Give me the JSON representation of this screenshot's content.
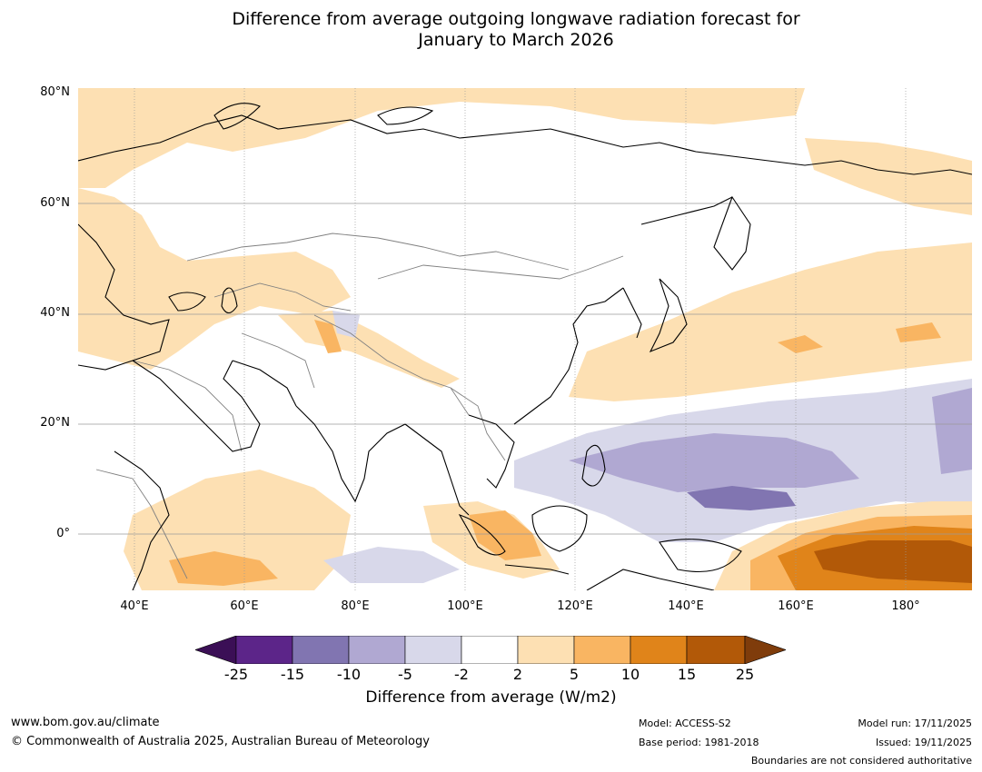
{
  "title": {
    "line1": "Difference from average outgoing longwave radiation forecast for",
    "line2": "January to March 2026"
  },
  "map": {
    "lat_labels": [
      "80°N",
      "60°N",
      "40°N",
      "20°N",
      "0°"
    ],
    "lon_labels": [
      "40°E",
      "60°E",
      "80°E",
      "100°E",
      "120°E",
      "140°E",
      "160°E",
      "180°"
    ],
    "colors": {
      "land_line": "#000000",
      "border_line": "#808080",
      "grid_line": "#9a9a9a",
      "tan": "#fde0b3",
      "light_orange": "#f9b562",
      "orange": "#e0841a",
      "brown": "#b25908",
      "lavender": "#d8d8ea",
      "light_purple": "#b0a8d2",
      "purple": "#8175b1"
    }
  },
  "colorbar": {
    "ticks": [
      "-25",
      "-15",
      "-10",
      "-5",
      "-2",
      "2",
      "5",
      "10",
      "15",
      "25"
    ],
    "colors": [
      "#3b0f56",
      "#5c2589",
      "#8175b1",
      "#b0a8d2",
      "#d8d8ea",
      "#ffffff",
      "#fde0b3",
      "#f9b562",
      "#e0841a",
      "#b25908",
      "#7f3c0b"
    ],
    "label": "Difference from average (W/m2)"
  },
  "footer": {
    "url": "www.bom.gov.au/climate",
    "copyright": "© Commonwealth of Australia 2025, Australian Bureau of Meteorology",
    "model": "Model: ACCESS-S2",
    "base_period": "Base period: 1981-2018",
    "model_run": "Model run: 17/11/2025",
    "issued": "Issued: 19/11/2025",
    "boundaries": "Boundaries are not considered authoritative"
  }
}
